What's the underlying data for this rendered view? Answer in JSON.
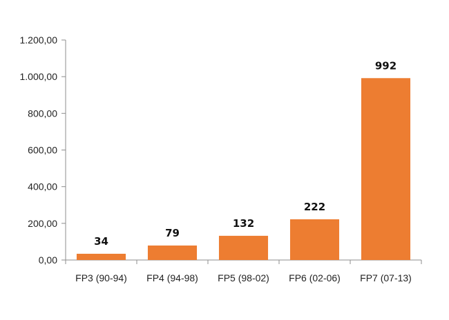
{
  "chart_data": {
    "type": "bar",
    "categories": [
      "FP3 (90-94)",
      "FP4 (94-98)",
      "FP5 (98-02)",
      "FP6 (02-06)",
      "FP7 (07-13)"
    ],
    "values": [
      34,
      79,
      132,
      222,
      992
    ],
    "data_labels": [
      "34",
      "79",
      "132",
      "222",
      "992"
    ],
    "y_ticks": [
      0,
      200,
      400,
      600,
      800,
      1000,
      1200
    ],
    "y_tick_labels": [
      "0,00",
      "200,00",
      "400,00",
      "600,00",
      "800,00",
      "1.000,00",
      "1.200,00"
    ],
    "ylim": [
      0,
      1200
    ],
    "title": "",
    "xlabel": "",
    "ylabel": "",
    "grid": false,
    "legend": "none",
    "bar_color": "#ED7D31",
    "axis_color": "#8C8C8C"
  }
}
